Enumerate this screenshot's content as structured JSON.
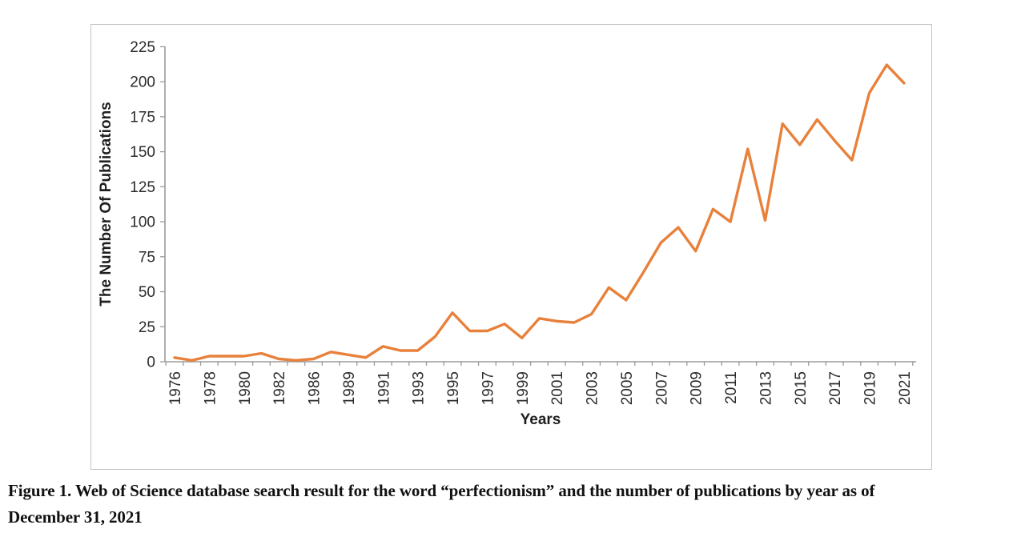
{
  "figure": {
    "caption_line1": "Figure 1. Web of Science database search result for the word “perfectionism” and the number of publications by year as of",
    "caption_line2": "December 31, 2021"
  },
  "chart_data": {
    "type": "line",
    "title": "",
    "xlabel": "Years",
    "ylabel": "The Number Of Publications",
    "categories": [
      "1976",
      "1977",
      "1978",
      "1979",
      "1980",
      "1981",
      "1982",
      "1984",
      "1986",
      "1988",
      "1989",
      "1990",
      "1991",
      "1992",
      "1993",
      "1994",
      "1995",
      "1996",
      "1997",
      "1998",
      "1999",
      "2000",
      "2001",
      "2002",
      "2003",
      "2004",
      "2005",
      "2006",
      "2007",
      "2008",
      "2009",
      "2010",
      "2011",
      "2012",
      "2013",
      "2014",
      "2015",
      "2016",
      "2017",
      "2018",
      "2019",
      "2020",
      "2021"
    ],
    "values": [
      3,
      1,
      4,
      4,
      4,
      6,
      2,
      1,
      2,
      7,
      5,
      3,
      11,
      8,
      8,
      18,
      35,
      22,
      22,
      27,
      17,
      31,
      29,
      28,
      34,
      53,
      44,
      64,
      85,
      96,
      79,
      109,
      100,
      152,
      101,
      170,
      155,
      173,
      158,
      144,
      192,
      212,
      199
    ],
    "visible_x_tick_labels": [
      "1976",
      "1978",
      "1980",
      "1982",
      "1986",
      "1989",
      "1991",
      "1993",
      "1995",
      "1997",
      "1999",
      "2001",
      "2003",
      "2005",
      "2007",
      "2009",
      "2011",
      "2013",
      "2015",
      "2017",
      "2019",
      "2021"
    ],
    "yticks": [
      0,
      25,
      50,
      75,
      100,
      125,
      150,
      175,
      200,
      225
    ],
    "ylim": [
      0,
      225
    ],
    "grid": false,
    "legend": "none",
    "marker": "none",
    "line_color": "#E8813B",
    "axis_color": "#9b9b9b",
    "label_color": "#2b2b2b"
  }
}
